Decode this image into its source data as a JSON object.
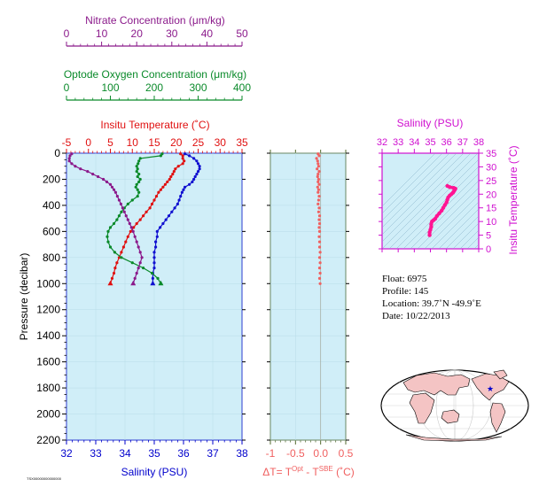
{
  "colors": {
    "nitrate": "#8b1a8b",
    "oxygen": "#0a8a2a",
    "temperature": "#e01010",
    "salinity": "#1010d0",
    "delta_t": "#f06060",
    "ts_salinity": "#d010d0",
    "ts_trace": "#ff1493",
    "panel_bg": "#d0eef8",
    "axis_main": "#0000cc",
    "axis_delta": "#556b2f"
  },
  "labels": {
    "nitrate_title": "Nitrate Concentration (μm/kg)",
    "oxygen_title": "Optode Oxygen Concentration (μm/kg)",
    "temperature_title": "Insitu Temperature (˚C)",
    "pressure_title": "Pressure (decibar)",
    "salinity_title": "Salinity (PSU)",
    "delta_title_dt": "ΔT= T",
    "delta_title_opt": "Opt",
    "delta_title_dash": " - T",
    "delta_title_sbe": "SBE",
    "delta_title_unit": " (˚C)",
    "ts_salinity_title": "Salinity (PSU)",
    "ts_temperature_title": "Insitu Temperature (˚C)",
    "footer_code": "TSX00000000000000"
  },
  "float_info": {
    "float_line": "Float:  6975",
    "profile_line": "Profile:  145",
    "location_line": "Location:  39.7˚N  -49.9˚E",
    "date_line": "Date:  10/22/2013"
  },
  "chart_data": [
    {
      "type": "line",
      "name": "main-profile",
      "ylabel": "Pressure (decibar)",
      "ylim": [
        2200,
        0
      ],
      "y_ticks": [
        0,
        200,
        400,
        600,
        800,
        1000,
        1200,
        1400,
        1600,
        1800,
        2000,
        2200
      ],
      "axes": {
        "salinity": {
          "label": "Salinity (PSU)",
          "range": [
            32,
            38
          ],
          "ticks": [
            32,
            33,
            34,
            35,
            36,
            37,
            38
          ]
        },
        "temperature": {
          "label": "Insitu Temperature (˚C)",
          "range": [
            -5,
            35
          ],
          "ticks": [
            -5,
            0,
            5,
            10,
            15,
            20,
            25,
            30,
            35
          ]
        },
        "oxygen": {
          "label": "Optode Oxygen Concentration (μm/kg)",
          "range": [
            0,
            400
          ],
          "ticks": [
            0,
            100,
            200,
            300,
            400
          ]
        },
        "nitrate": {
          "label": "Nitrate Concentration (μm/kg)",
          "range": [
            0,
            50
          ],
          "ticks": [
            0,
            10,
            20,
            30,
            40,
            50
          ]
        }
      },
      "series": [
        {
          "axis": "temperature",
          "color": "#e01010",
          "points": [
            [
              21.0,
              5
            ],
            [
              21.5,
              20
            ],
            [
              21.5,
              40
            ],
            [
              21.8,
              60
            ],
            [
              21.5,
              80
            ],
            [
              20.5,
              100
            ],
            [
              19.8,
              120
            ],
            [
              19.5,
              140
            ],
            [
              19.2,
              160
            ],
            [
              18.8,
              180
            ],
            [
              18.5,
              200
            ],
            [
              18.0,
              220
            ],
            [
              17.5,
              240
            ],
            [
              17.0,
              260
            ],
            [
              16.5,
              280
            ],
            [
              16.0,
              300
            ],
            [
              15.5,
              330
            ],
            [
              15.0,
              360
            ],
            [
              14.5,
              390
            ],
            [
              14.0,
              420
            ],
            [
              13.2,
              450
            ],
            [
              12.5,
              480
            ],
            [
              11.8,
              510
            ],
            [
              11.0,
              540
            ],
            [
              10.3,
              570
            ],
            [
              9.6,
              600
            ],
            [
              9.0,
              640
            ],
            [
              8.5,
              680
            ],
            [
              8.0,
              720
            ],
            [
              7.5,
              760
            ],
            [
              7.0,
              800
            ],
            [
              6.5,
              840
            ],
            [
              6.1,
              880
            ],
            [
              5.8,
              920
            ],
            [
              5.4,
              960
            ],
            [
              5.0,
              1000
            ]
          ]
        },
        {
          "axis": "salinity",
          "color": "#1010d0",
          "points": [
            [
              36.05,
              5
            ],
            [
              36.2,
              20
            ],
            [
              36.35,
              40
            ],
            [
              36.45,
              60
            ],
            [
              36.5,
              80
            ],
            [
              36.55,
              100
            ],
            [
              36.55,
              120
            ],
            [
              36.5,
              140
            ],
            [
              36.45,
              160
            ],
            [
              36.4,
              180
            ],
            [
              36.35,
              200
            ],
            [
              36.3,
              220
            ],
            [
              36.2,
              240
            ],
            [
              36.05,
              260
            ],
            [
              36.0,
              280
            ],
            [
              35.95,
              300
            ],
            [
              35.9,
              330
            ],
            [
              35.85,
              360
            ],
            [
              35.8,
              390
            ],
            [
              35.7,
              420
            ],
            [
              35.6,
              450
            ],
            [
              35.5,
              480
            ],
            [
              35.4,
              510
            ],
            [
              35.3,
              540
            ],
            [
              35.2,
              570
            ],
            [
              35.1,
              600
            ],
            [
              35.1,
              640
            ],
            [
              35.05,
              680
            ],
            [
              35.05,
              720
            ],
            [
              35.0,
              760
            ],
            [
              35.0,
              800
            ],
            [
              35.0,
              840
            ],
            [
              35.0,
              880
            ],
            [
              34.95,
              920
            ],
            [
              34.95,
              960
            ],
            [
              34.95,
              1000
            ]
          ]
        },
        {
          "axis": "oxygen",
          "color": "#0a8a2a",
          "points": [
            [
              218,
              5
            ],
            [
              215,
              20
            ],
            [
              168,
              40
            ],
            [
              165,
              60
            ],
            [
              163,
              80
            ],
            [
              160,
              100
            ],
            [
              162,
              120
            ],
            [
              160,
              140
            ],
            [
              165,
              160
            ],
            [
              162,
              180
            ],
            [
              168,
              200
            ],
            [
              165,
              220
            ],
            [
              160,
              240
            ],
            [
              158,
              260
            ],
            [
              162,
              280
            ],
            [
              165,
              300
            ],
            [
              162,
              330
            ],
            [
              150,
              360
            ],
            [
              140,
              390
            ],
            [
              132,
              420
            ],
            [
              125,
              450
            ],
            [
              120,
              480
            ],
            [
              115,
              510
            ],
            [
              108,
              540
            ],
            [
              100,
              570
            ],
            [
              95,
              600
            ],
            [
              93,
              640
            ],
            [
              95,
              680
            ],
            [
              100,
              720
            ],
            [
              110,
              760
            ],
            [
              125,
              800
            ],
            [
              150,
              840
            ],
            [
              175,
              880
            ],
            [
              195,
              920
            ],
            [
              208,
              960
            ],
            [
              215,
              1000
            ]
          ]
        },
        {
          "axis": "nitrate",
          "color": "#8b1a8b",
          "points": [
            [
              1.5,
              5
            ],
            [
              1.0,
              20
            ],
            [
              0.8,
              40
            ],
            [
              0.8,
              60
            ],
            [
              1.5,
              80
            ],
            [
              2.5,
              100
            ],
            [
              4.0,
              120
            ],
            [
              6.0,
              140
            ],
            [
              7.5,
              160
            ],
            [
              9.0,
              180
            ],
            [
              10.5,
              200
            ],
            [
              11.5,
              220
            ],
            [
              12.5,
              240
            ],
            [
              13.0,
              260
            ],
            [
              13.5,
              280
            ],
            [
              14.0,
              300
            ],
            [
              14.5,
              330
            ],
            [
              15.0,
              360
            ],
            [
              15.5,
              390
            ],
            [
              16.0,
              420
            ],
            [
              16.5,
              450
            ],
            [
              17.0,
              480
            ],
            [
              17.5,
              510
            ],
            [
              18.0,
              540
            ],
            [
              18.5,
              570
            ],
            [
              19.0,
              600
            ],
            [
              19.5,
              640
            ],
            [
              20.0,
              680
            ],
            [
              20.5,
              720
            ],
            [
              21.0,
              760
            ],
            [
              21.5,
              800
            ],
            [
              21.0,
              840
            ],
            [
              20.5,
              880
            ],
            [
              20.0,
              920
            ],
            [
              19.5,
              960
            ],
            [
              19.0,
              1000
            ]
          ]
        }
      ]
    },
    {
      "type": "scatter",
      "name": "delta-t",
      "xlabel": "ΔT= T Opt - T SBE (˚C)",
      "xlim": [
        -1.0,
        0.5
      ],
      "x_ticks": [
        -1.0,
        -0.5,
        0.0,
        0.5
      ],
      "ylim": [
        2200,
        0
      ],
      "color": "#f06060",
      "points": [
        [
          -0.05,
          5
        ],
        [
          -0.03,
          20
        ],
        [
          -0.08,
          40
        ],
        [
          -0.06,
          60
        ],
        [
          -0.05,
          80
        ],
        [
          -0.04,
          100
        ],
        [
          -0.07,
          120
        ],
        [
          -0.03,
          140
        ],
        [
          -0.05,
          160
        ],
        [
          -0.06,
          180
        ],
        [
          -0.04,
          200
        ],
        [
          -0.05,
          220
        ],
        [
          -0.03,
          240
        ],
        [
          -0.06,
          260
        ],
        [
          -0.04,
          280
        ],
        [
          -0.05,
          300
        ],
        [
          -0.03,
          330
        ],
        [
          -0.04,
          360
        ],
        [
          -0.05,
          390
        ],
        [
          -0.03,
          420
        ],
        [
          -0.04,
          450
        ],
        [
          -0.02,
          480
        ],
        [
          -0.03,
          510
        ],
        [
          -0.02,
          540
        ],
        [
          -0.03,
          570
        ],
        [
          -0.02,
          600
        ],
        [
          -0.03,
          640
        ],
        [
          -0.02,
          680
        ],
        [
          -0.02,
          720
        ],
        [
          -0.01,
          760
        ],
        [
          -0.02,
          800
        ],
        [
          -0.01,
          840
        ],
        [
          -0.02,
          880
        ],
        [
          -0.01,
          920
        ],
        [
          -0.02,
          960
        ],
        [
          -0.01,
          1000
        ]
      ]
    },
    {
      "type": "line",
      "name": "ts-diagram",
      "xlabel": "Salinity (PSU)",
      "ylabel": "Insitu Temperature (˚C)",
      "xlim": [
        32,
        38
      ],
      "ylim": [
        0,
        35
      ],
      "x_ticks": [
        32,
        33,
        34,
        35,
        36,
        37,
        38
      ],
      "y_ticks": [
        0,
        5,
        10,
        15,
        20,
        25,
        30,
        35
      ],
      "color": "#ff1493",
      "points": [
        [
          34.95,
          5.0
        ],
        [
          34.95,
          6.0
        ],
        [
          35.0,
          7.0
        ],
        [
          35.05,
          8.0
        ],
        [
          35.05,
          9.0
        ],
        [
          35.1,
          10.0
        ],
        [
          35.2,
          10.5
        ],
        [
          35.3,
          11.0
        ],
        [
          35.4,
          12.0
        ],
        [
          35.55,
          13.0
        ],
        [
          35.7,
          14.0
        ],
        [
          35.8,
          15.0
        ],
        [
          35.9,
          16.0
        ],
        [
          36.0,
          17.0
        ],
        [
          36.05,
          18.0
        ],
        [
          36.1,
          18.8
        ],
        [
          36.2,
          19.5
        ],
        [
          36.3,
          20.0
        ],
        [
          36.4,
          20.5
        ],
        [
          36.45,
          21.0
        ],
        [
          36.5,
          21.5
        ],
        [
          36.55,
          22.0
        ],
        [
          36.45,
          22.3
        ],
        [
          36.2,
          22.6
        ],
        [
          36.05,
          23.0
        ]
      ]
    }
  ]
}
